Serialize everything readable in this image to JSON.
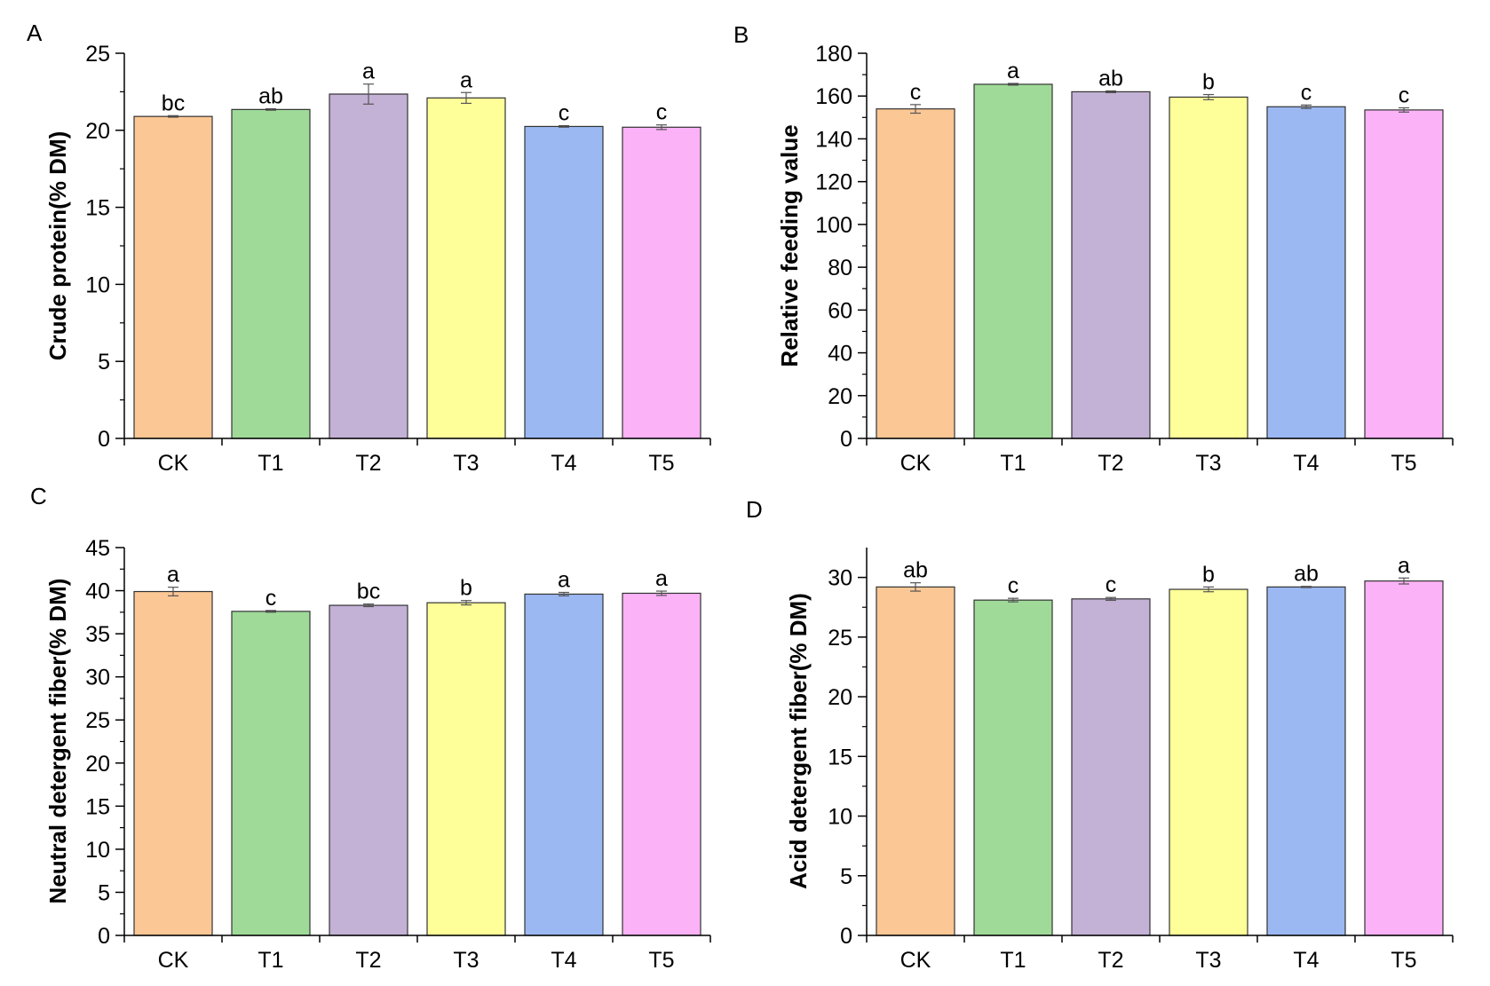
{
  "chart_data": [
    {
      "panel": "A",
      "type": "bar",
      "ylabel": "Crude protein(% DM)",
      "ylim": [
        0,
        25
      ],
      "ymajor": [
        0,
        5,
        10,
        15,
        20,
        25
      ],
      "categories": [
        "CK",
        "T1",
        "T2",
        "T3",
        "T4",
        "T5"
      ],
      "values": [
        20.9,
        21.35,
        22.35,
        22.1,
        20.25,
        20.2
      ],
      "errors": [
        0.05,
        0.05,
        0.65,
        0.35,
        0.05,
        0.15
      ],
      "significance": [
        "bc",
        "ab",
        "a",
        "a",
        "c",
        "c"
      ],
      "colors": [
        "#fbc795",
        "#9fda99",
        "#c3b1d6",
        "#ffff99",
        "#9bb8f2",
        "#fbb2f6"
      ]
    },
    {
      "panel": "B",
      "type": "bar",
      "ylabel": "Relative feeding value",
      "ylim": [
        0,
        180
      ],
      "ymajor": [
        0,
        20,
        40,
        60,
        80,
        100,
        120,
        140,
        160,
        180
      ],
      "categories": [
        "CK",
        "T1",
        "T2",
        "T3",
        "T4",
        "T5"
      ],
      "values": [
        154,
        165.5,
        162,
        159.5,
        155,
        153.5
      ],
      "errors": [
        2.0,
        0.4,
        0.4,
        1.2,
        0.8,
        1.0
      ],
      "significance": [
        "c",
        "a",
        "ab",
        "b",
        "c",
        "c"
      ],
      "colors": [
        "#fbc795",
        "#9fda99",
        "#c3b1d6",
        "#ffff99",
        "#9bb8f2",
        "#fbb2f6"
      ]
    },
    {
      "panel": "C",
      "type": "bar",
      "ylabel": "Neutral detergent fiber(% DM)",
      "ylim": [
        0,
        45
      ],
      "ymajor": [
        0,
        5,
        10,
        15,
        20,
        25,
        30,
        35,
        40,
        45
      ],
      "categories": [
        "CK",
        "T1",
        "T2",
        "T3",
        "T4",
        "T5"
      ],
      "values": [
        39.9,
        37.6,
        38.3,
        38.6,
        39.6,
        39.7
      ],
      "errors": [
        0.5,
        0.1,
        0.15,
        0.25,
        0.2,
        0.25
      ],
      "significance": [
        "a",
        "c",
        "bc",
        "b",
        "a",
        "a"
      ],
      "colors": [
        "#fbc795",
        "#9fda99",
        "#c3b1d6",
        "#ffff99",
        "#9bb8f2",
        "#fbb2f6"
      ]
    },
    {
      "panel": "D",
      "type": "bar",
      "ylabel": "Acid detergent fiber(% DM)",
      "ylim": [
        0,
        32.5
      ],
      "ymajor": [
        0,
        5,
        10,
        15,
        20,
        25,
        30
      ],
      "categories": [
        "CK",
        "T1",
        "T2",
        "T3",
        "T4",
        "T5"
      ],
      "values": [
        29.2,
        28.1,
        28.2,
        29.0,
        29.2,
        29.7
      ],
      "errors": [
        0.35,
        0.15,
        0.12,
        0.2,
        0.05,
        0.25
      ],
      "significance": [
        "ab",
        "c",
        "c",
        "b",
        "ab",
        "a"
      ],
      "colors": [
        "#fbc795",
        "#9fda99",
        "#c3b1d6",
        "#ffff99",
        "#9bb8f2",
        "#fbb2f6"
      ]
    }
  ]
}
